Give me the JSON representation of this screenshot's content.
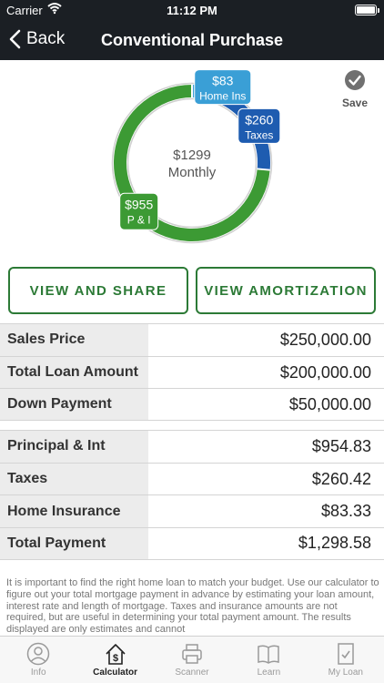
{
  "status": {
    "carrier": "Carrier",
    "time": "11:12 PM"
  },
  "nav": {
    "back_label": "Back",
    "title": "Conventional Purchase"
  },
  "save": {
    "label": "Save"
  },
  "chart_data": {
    "type": "pie",
    "center_value": "$1299",
    "center_label": "Monthly",
    "slices": [
      {
        "value": 955,
        "display": "$955",
        "name": "P & I",
        "color": "#3c9a34"
      },
      {
        "value": 83,
        "display": "$83",
        "name": "Home Ins",
        "color": "#3a9fd6"
      },
      {
        "value": 260,
        "display": "$260",
        "name": "Taxes",
        "color": "#1e5cb0"
      }
    ]
  },
  "buttons": {
    "share": "VIEW AND SHARE",
    "amortization": "VIEW AMORTIZATION"
  },
  "loan_rows": [
    {
      "label": "Sales Price",
      "value": "$250,000.00"
    },
    {
      "label": "Total Loan Amount",
      "value": "$200,000.00"
    },
    {
      "label": "Down Payment",
      "value": "$50,000.00"
    }
  ],
  "payment_rows": [
    {
      "label": "Principal & Int",
      "value": "$954.83"
    },
    {
      "label": "Taxes",
      "value": "$260.42"
    },
    {
      "label": "Home Insurance",
      "value": "$83.33"
    },
    {
      "label": "Total Payment",
      "value": "$1,298.58"
    }
  ],
  "disclaimer": "It is important to find the right home loan to match your budget. Use our calculator to figure out your total mortgage payment in advance by estimating your loan amount, interest rate and length of mortgage. Taxes and insurance amounts are not required, but are useful in determining your total payment amount. The results displayed are only estimates and cannot",
  "tabs": [
    {
      "label": "Info",
      "icon": "person-icon",
      "active": false
    },
    {
      "label": "Calculator",
      "icon": "house-dollar-icon",
      "active": true
    },
    {
      "label": "Scanner",
      "icon": "printer-icon",
      "active": false
    },
    {
      "label": "Learn",
      "icon": "book-icon",
      "active": false
    },
    {
      "label": "My Loan",
      "icon": "document-check-icon",
      "active": false
    }
  ],
  "colors": {
    "bar": "#1b1f24",
    "accent": "#2c7a36"
  }
}
